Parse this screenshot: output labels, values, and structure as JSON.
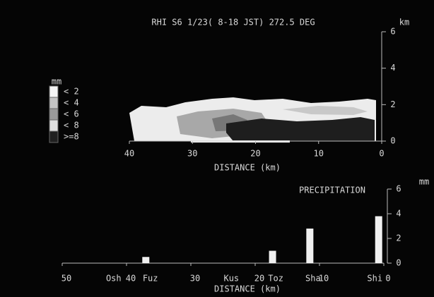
{
  "chart_data": [
    {
      "type": "rhi",
      "title": "RHI  S6 1/23( 8-18 JST) 272.5 DEG",
      "x_label": "DISTANCE (km)",
      "y_unit": "km",
      "xlim": [
        40,
        0
      ],
      "xticks": [
        40,
        30,
        20,
        10,
        0
      ],
      "ylim": [
        0,
        6
      ],
      "yticks": [
        0,
        2,
        4,
        6
      ],
      "legend_title": "mm",
      "legend": [
        {
          "label": "< 2",
          "color": "#f4f4f4"
        },
        {
          "label": "< 4",
          "color": "#c4c4c4"
        },
        {
          "label": "< 6",
          "color": "#9a9a9a"
        },
        {
          "label": "< 8",
          "color": "#e0e0e0"
        },
        {
          "label": ">=8",
          "color": "#202020"
        }
      ]
    },
    {
      "type": "bar",
      "title": "PRECIPITATION",
      "x_label": "DISTANCE (km)",
      "y_unit": "mm",
      "color": "#f0f0f0",
      "xlim": [
        50,
        0
      ],
      "xticks": [
        50,
        40,
        30,
        20,
        10,
        0
      ],
      "ylim": [
        0,
        6
      ],
      "yticks": [
        0,
        2,
        4,
        6
      ],
      "stations": [
        {
          "name": "Osh",
          "x": 42
        },
        {
          "name": "Fuz",
          "x": 36.3
        },
        {
          "name": "Kus",
          "x": 23.7
        },
        {
          "name": "Toz",
          "x": 16.8
        },
        {
          "name": "Sha",
          "x": 11
        },
        {
          "name": "Shi",
          "x": 1.4
        }
      ],
      "x": [
        37,
        17.3,
        11.5,
        0.8
      ],
      "values": [
        0.5,
        1.0,
        2.8,
        3.8
      ]
    }
  ]
}
